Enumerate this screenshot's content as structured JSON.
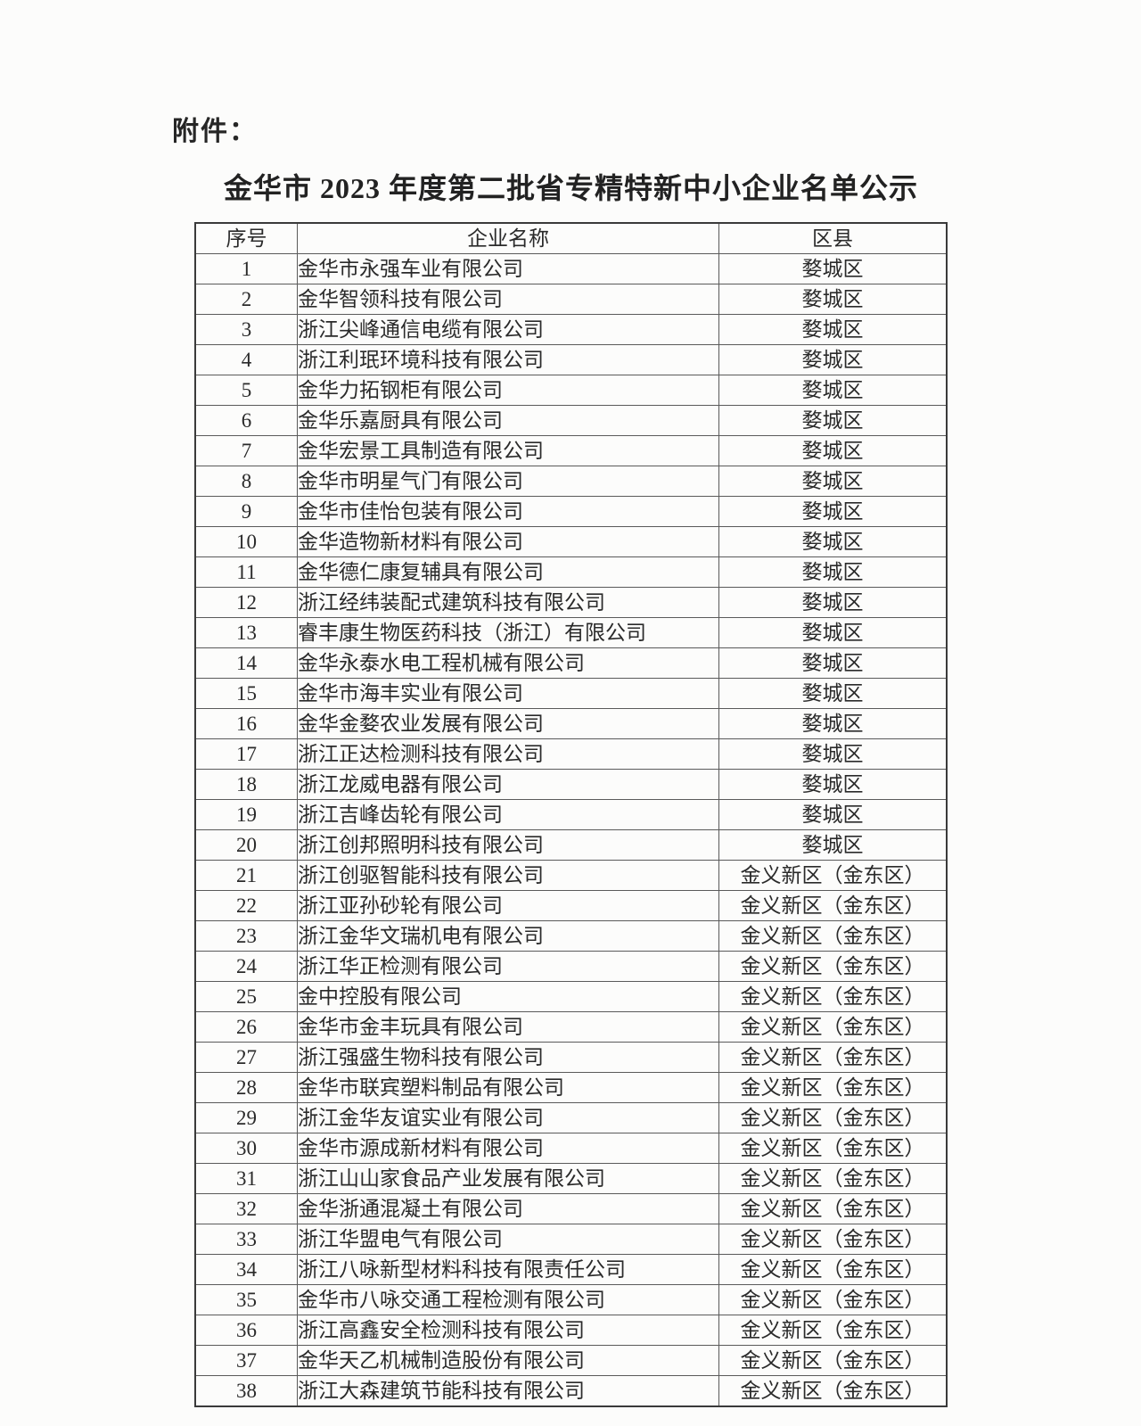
{
  "page": {
    "attachment_label": "附件：",
    "title": "金华市 2023 年度第二批省专精特新中小企业名单公示"
  },
  "colors": {
    "background": "#fcfcfb",
    "text": "#2a2a2a",
    "border_outer": "#3a3a3a",
    "border_inner": "#5a5a5a"
  },
  "table": {
    "headers": [
      "序号",
      "企业名称",
      "区县"
    ],
    "rows": [
      {
        "no": "1",
        "name": "金华市永强车业有限公司",
        "district": "婺城区"
      },
      {
        "no": "2",
        "name": "金华智领科技有限公司",
        "district": "婺城区"
      },
      {
        "no": "3",
        "name": "浙江尖峰通信电缆有限公司",
        "district": "婺城区"
      },
      {
        "no": "4",
        "name": "浙江利珉环境科技有限公司",
        "district": "婺城区"
      },
      {
        "no": "5",
        "name": "金华力拓钢柜有限公司",
        "district": "婺城区"
      },
      {
        "no": "6",
        "name": "金华乐嘉厨具有限公司",
        "district": "婺城区"
      },
      {
        "no": "7",
        "name": "金华宏景工具制造有限公司",
        "district": "婺城区"
      },
      {
        "no": "8",
        "name": "金华市明星气门有限公司",
        "district": "婺城区"
      },
      {
        "no": "9",
        "name": "金华市佳怡包装有限公司",
        "district": "婺城区"
      },
      {
        "no": "10",
        "name": "金华造物新材料有限公司",
        "district": "婺城区"
      },
      {
        "no": "11",
        "name": "金华德仁康复辅具有限公司",
        "district": "婺城区"
      },
      {
        "no": "12",
        "name": "浙江经纬装配式建筑科技有限公司",
        "district": "婺城区"
      },
      {
        "no": "13",
        "name": "睿丰康生物医药科技（浙江）有限公司",
        "district": "婺城区"
      },
      {
        "no": "14",
        "name": "金华永泰水电工程机械有限公司",
        "district": "婺城区"
      },
      {
        "no": "15",
        "name": "金华市海丰实业有限公司",
        "district": "婺城区"
      },
      {
        "no": "16",
        "name": "金华金婺农业发展有限公司",
        "district": "婺城区"
      },
      {
        "no": "17",
        "name": "浙江正达检测科技有限公司",
        "district": "婺城区"
      },
      {
        "no": "18",
        "name": "浙江龙威电器有限公司",
        "district": "婺城区"
      },
      {
        "no": "19",
        "name": "浙江吉峰齿轮有限公司",
        "district": "婺城区"
      },
      {
        "no": "20",
        "name": "浙江创邦照明科技有限公司",
        "district": "婺城区"
      },
      {
        "no": "21",
        "name": "浙江创驱智能科技有限公司",
        "district": "金义新区（金东区）"
      },
      {
        "no": "22",
        "name": "浙江亚孙砂轮有限公司",
        "district": "金义新区（金东区）"
      },
      {
        "no": "23",
        "name": "浙江金华文瑞机电有限公司",
        "district": "金义新区（金东区）"
      },
      {
        "no": "24",
        "name": "浙江华正检测有限公司",
        "district": "金义新区（金东区）"
      },
      {
        "no": "25",
        "name": "金中控股有限公司",
        "district": "金义新区（金东区）"
      },
      {
        "no": "26",
        "name": "金华市金丰玩具有限公司",
        "district": "金义新区（金东区）"
      },
      {
        "no": "27",
        "name": "浙江强盛生物科技有限公司",
        "district": "金义新区（金东区）"
      },
      {
        "no": "28",
        "name": "金华市联宾塑料制品有限公司",
        "district": "金义新区（金东区）"
      },
      {
        "no": "29",
        "name": "浙江金华友谊实业有限公司",
        "district": "金义新区（金东区）"
      },
      {
        "no": "30",
        "name": "金华市源成新材料有限公司",
        "district": "金义新区（金东区）"
      },
      {
        "no": "31",
        "name": "浙江山山家食品产业发展有限公司",
        "district": "金义新区（金东区）"
      },
      {
        "no": "32",
        "name": "金华浙通混凝土有限公司",
        "district": "金义新区（金东区）"
      },
      {
        "no": "33",
        "name": "浙江华盟电气有限公司",
        "district": "金义新区（金东区）"
      },
      {
        "no": "34",
        "name": "浙江八咏新型材料科技有限责任公司",
        "district": "金义新区（金东区）"
      },
      {
        "no": "35",
        "name": "金华市八咏交通工程检测有限公司",
        "district": "金义新区（金东区）"
      },
      {
        "no": "36",
        "name": "浙江高鑫安全检测科技有限公司",
        "district": "金义新区（金东区）"
      },
      {
        "no": "37",
        "name": "金华天乙机械制造股份有限公司",
        "district": "金义新区（金东区）"
      },
      {
        "no": "38",
        "name": "浙江大森建筑节能科技有限公司",
        "district": "金义新区（金东区）"
      }
    ]
  }
}
